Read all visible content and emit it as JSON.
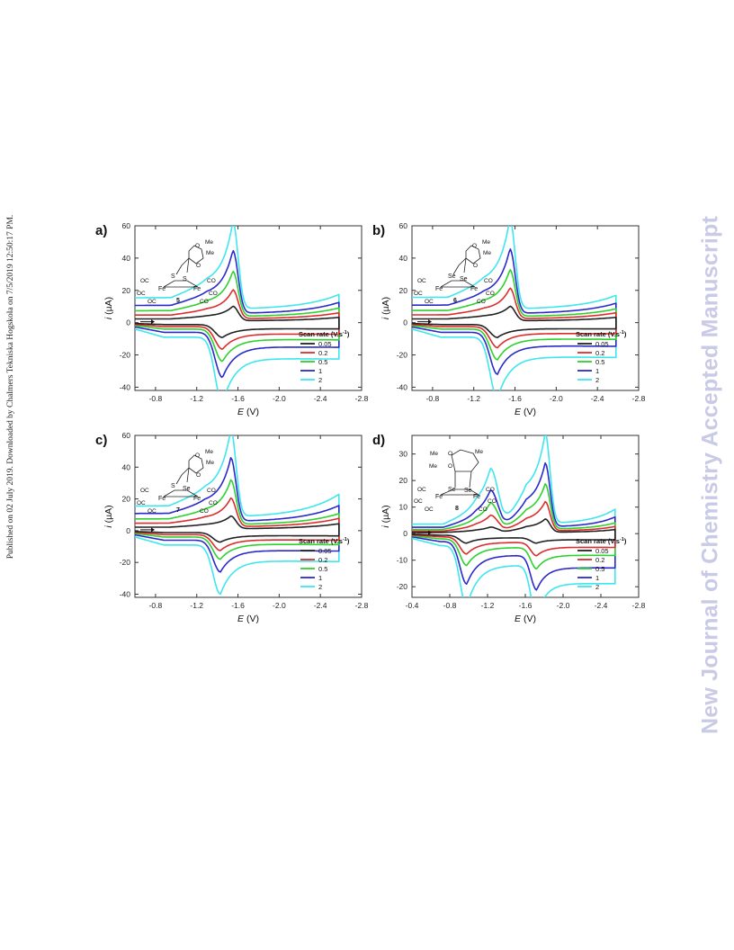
{
  "page": {
    "published_note": "Published on 02 July 2019. Downloaded by Chalmers Tekniska Hogskola on 7/5/2019 12:50:17 PM.",
    "journal_watermark": "New Journal of Chemistry Accepted Manuscript"
  },
  "colors": {
    "series": [
      "#222222",
      "#dd2c2c",
      "#2ed12e",
      "#2a2acc",
      "#3ee6ee"
    ],
    "axis": "#333333"
  },
  "chart_data": [
    {
      "type": "line",
      "panel_label": "a)",
      "xlabel_italic": "E",
      "xlabel_unit": "(V)",
      "ylabel_italic": "i",
      "ylabel_unit": "(µA)",
      "xlim": [
        -0.6,
        -2.8
      ],
      "ylim": [
        -42,
        60
      ],
      "xticks": [
        -0.8,
        -1.2,
        -1.6,
        -2.0,
        -2.4,
        -2.8
      ],
      "xtick_labels": [
        "-0.8",
        "-1.2",
        "-1.6",
        "-2.0",
        "-2.4",
        "-2.8"
      ],
      "yticks": [
        -40,
        -20,
        0,
        20,
        40,
        60
      ],
      "ytick_labels": [
        "-40",
        "-20",
        "0",
        "20",
        "40",
        "60"
      ],
      "legend_title": "Scan rate (V.s",
      "legend_title_sup": "-1",
      "legend_title_end": ")",
      "legend_position": "bottom-right",
      "compound_number": "5",
      "structure_labels": [
        "S",
        "S",
        "Fe",
        "Fe",
        "OC",
        "OC",
        "OC",
        "CO",
        "CO",
        "CO",
        "O",
        "O",
        "Me",
        "Me"
      ],
      "peaks": {
        "red1": -1.45,
        "ox1": -1.55,
        "red2": null,
        "ox2": null
      },
      "series": [
        {
          "name": "0.05",
          "rate": 0.05,
          "pc1": -8,
          "pa1": 9,
          "cap": 1.2,
          "tail_c": 4,
          "tail_a": 4
        },
        {
          "name": "0.2",
          "rate": 0.2,
          "pc1": -14,
          "pa1": 18,
          "cap": 2.5,
          "tail_c": 6,
          "tail_a": 7
        },
        {
          "name": "0.5",
          "rate": 0.5,
          "pc1": -20,
          "pa1": 28,
          "cap": 4,
          "tail_c": 8,
          "tail_a": 10
        },
        {
          "name": "1",
          "rate": 1,
          "pc1": -28,
          "pa1": 39,
          "cap": 6,
          "tail_c": 10,
          "tail_a": 13
        },
        {
          "name": "2",
          "rate": 2,
          "pc1": -41,
          "pa1": 54,
          "cap": 9,
          "tail_c": 13,
          "tail_a": 17
        }
      ]
    },
    {
      "type": "line",
      "panel_label": "b)",
      "xlabel_italic": "E",
      "xlabel_unit": "(V)",
      "ylabel_italic": "i",
      "ylabel_unit": "(µA)",
      "xlim": [
        -0.6,
        -2.8
      ],
      "ylim": [
        -42,
        60
      ],
      "xticks": [
        -0.8,
        -1.2,
        -1.6,
        -2.0,
        -2.4,
        -2.8
      ],
      "xtick_labels": [
        "-0.8",
        "-1.2",
        "-1.6",
        "-2.0",
        "-2.4",
        "-2.8"
      ],
      "yticks": [
        -40,
        -20,
        0,
        20,
        40,
        60
      ],
      "ytick_labels": [
        "-40",
        "-20",
        "0",
        "20",
        "40",
        "60"
      ],
      "legend_title": "Scan rate (V.s",
      "legend_title_sup": "-1",
      "legend_title_end": ")",
      "legend_position": "bottom-right",
      "compound_number": "6",
      "structure_labels": [
        "Se",
        "Se",
        "Fe",
        "Fe",
        "OC",
        "OC",
        "OC",
        "CO",
        "CO",
        "CO",
        "O",
        "O",
        "Me",
        "Me"
      ],
      "peaks": {
        "red1": -1.43,
        "ox1": -1.55,
        "red2": null,
        "ox2": null
      },
      "series": [
        {
          "name": "0.05",
          "rate": 0.05,
          "pc1": -8,
          "pa1": 9,
          "cap": 1.2,
          "tail_c": 4,
          "tail_a": 4
        },
        {
          "name": "0.2",
          "rate": 0.2,
          "pc1": -13,
          "pa1": 19,
          "cap": 2.5,
          "tail_c": 6,
          "tail_a": 7
        },
        {
          "name": "0.5",
          "rate": 0.5,
          "pc1": -19,
          "pa1": 29,
          "cap": 4,
          "tail_c": 8,
          "tail_a": 9
        },
        {
          "name": "1",
          "rate": 1,
          "pc1": -26,
          "pa1": 40,
          "cap": 6,
          "tail_c": 10,
          "tail_a": 12
        },
        {
          "name": "2",
          "rate": 2,
          "pc1": -38,
          "pa1": 56,
          "cap": 9,
          "tail_c": 12,
          "tail_a": 16
        }
      ]
    },
    {
      "type": "line",
      "panel_label": "c)",
      "xlabel_italic": "E",
      "xlabel_unit": "(V)",
      "ylabel_italic": "i",
      "ylabel_unit": "(µA)",
      "xlim": [
        -0.6,
        -2.8
      ],
      "ylim": [
        -42,
        60
      ],
      "xticks": [
        -0.8,
        -1.2,
        -1.6,
        -2.0,
        -2.4,
        -2.8
      ],
      "xtick_labels": [
        "-0.8",
        "-1.2",
        "-1.6",
        "-2.0",
        "-2.4",
        "-2.8"
      ],
      "yticks": [
        -40,
        -20,
        0,
        20,
        40,
        60
      ],
      "ytick_labels": [
        "-40",
        "-20",
        "0",
        "20",
        "40",
        "60"
      ],
      "legend_title": "Scan rate (V.s",
      "legend_title_sup": "-1",
      "legend_title_end": ")",
      "legend_position": "bottom-right",
      "compound_number": "7",
      "structure_labels": [
        "S",
        "Se",
        "Fe",
        "Fe",
        "OC",
        "OC",
        "OC",
        "CO",
        "CO",
        "CO",
        "O",
        "O",
        "Me",
        "Me"
      ],
      "peaks": {
        "red1": -1.43,
        "ox1": -1.53,
        "red2": null,
        "ox2": null
      },
      "series": [
        {
          "name": "0.05",
          "rate": 0.05,
          "pc1": -6,
          "pa1": 8,
          "cap": 1.2,
          "tail_c": 5,
          "tail_a": 6
        },
        {
          "name": "0.2",
          "rate": 0.2,
          "pc1": -10,
          "pa1": 18,
          "cap": 2.5,
          "tail_c": 8,
          "tail_a": 10
        },
        {
          "name": "0.5",
          "rate": 0.5,
          "pc1": -14,
          "pa1": 28,
          "cap": 4,
          "tail_c": 10,
          "tail_a": 13
        },
        {
          "name": "1",
          "rate": 1,
          "pc1": -20,
          "pa1": 40,
          "cap": 6,
          "tail_c": 13,
          "tail_a": 19
        },
        {
          "name": "2",
          "rate": 2,
          "pc1": -31,
          "pa1": 55,
          "cap": 9,
          "tail_c": 16,
          "tail_a": 27
        }
      ]
    },
    {
      "type": "line",
      "panel_label": "d)",
      "xlabel_italic": "E",
      "xlabel_unit": "(V)",
      "ylabel_italic": "i",
      "ylabel_unit": "(µA)",
      "xlim": [
        -0.4,
        -2.8
      ],
      "ylim": [
        -24,
        37
      ],
      "xticks": [
        -0.4,
        -0.8,
        -1.2,
        -1.6,
        -2.0,
        -2.4,
        -2.8
      ],
      "xtick_labels": [
        "-0.4",
        "-0.8",
        "-1.2",
        "-1.6",
        "-2.0",
        "-2.4",
        "-2.8"
      ],
      "yticks": [
        -20,
        -10,
        0,
        10,
        20,
        30
      ],
      "ytick_labels": [
        "-20",
        "-10",
        "0",
        "10",
        "20",
        "30"
      ],
      "legend_title": "Scan rate (V.s",
      "legend_title_sup": "-1",
      "legend_title_end": ")",
      "legend_position": "bottom-right",
      "compound_number": "8",
      "structure_labels": [
        "Se",
        "Se",
        "Fe",
        "Fe",
        "OC",
        "OC",
        "OC",
        "CO",
        "CO",
        "CO",
        "O",
        "O",
        "Me",
        "Me",
        "Me"
      ],
      "peaks": {
        "red1": -0.98,
        "ox1": -1.23,
        "red2": -1.72,
        "ox2": -1.81
      },
      "series": [
        {
          "name": "0.05",
          "rate": 0.05,
          "pc1": -3,
          "pa1": 2,
          "pc2": -2,
          "pa2": 5,
          "cap": 0.6,
          "tail_c": 1.5,
          "tail_a": 3
        },
        {
          "name": "0.2",
          "rate": 0.2,
          "pc1": -6.5,
          "pa1": 6,
          "pc2": -5,
          "pa2": 11,
          "cap": 1.2,
          "tail_c": 3,
          "tail_a": 5
        },
        {
          "name": "0.5",
          "rate": 0.5,
          "pc1": -10,
          "pa1": 10,
          "pc2": -8,
          "pa2": 17,
          "cap": 2,
          "tail_c": 4,
          "tail_a": 7
        },
        {
          "name": "1",
          "rate": 1,
          "pc1": -16,
          "pa1": 14,
          "pc2": -13,
          "pa2": 24,
          "cap": 3,
          "tail_c": 5,
          "tail_a": 11
        },
        {
          "name": "2",
          "rate": 2,
          "pc1": -23,
          "pa1": 21,
          "pc2": -19,
          "pa2": 34,
          "cap": 4.5,
          "tail_c": 7,
          "tail_a": 16
        }
      ]
    }
  ]
}
